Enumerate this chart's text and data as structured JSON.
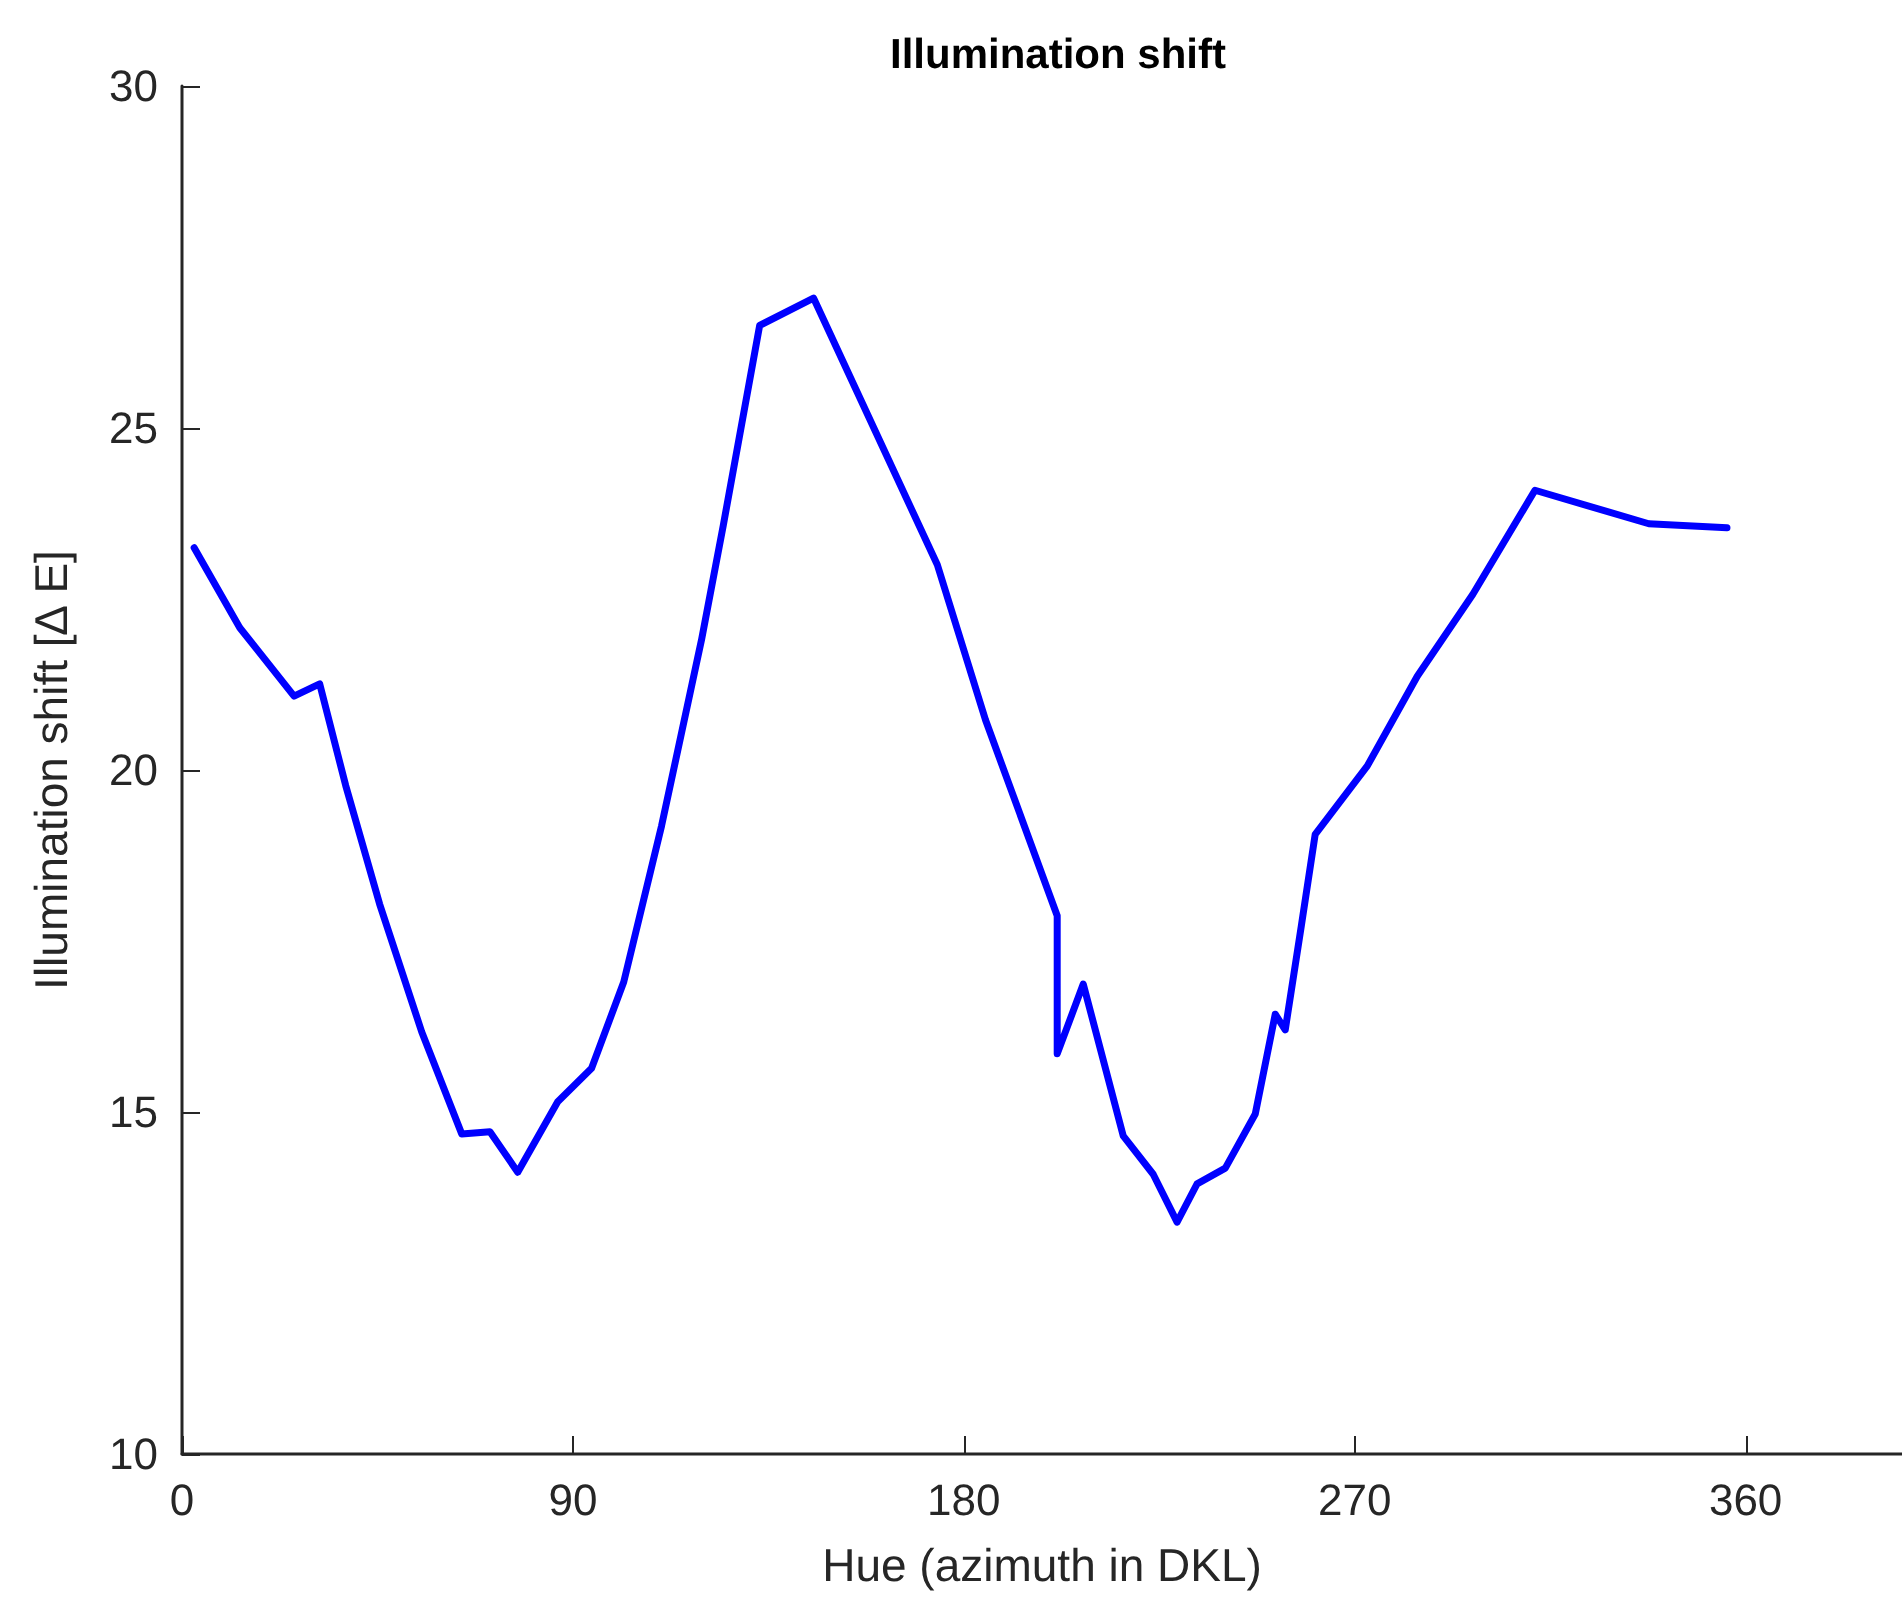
{
  "chart_data": {
    "type": "line",
    "title": "Illumination shift",
    "xlabel": "Hue (azimuth in DKL)",
    "ylabel": "Illumination shift [∆ E]",
    "x": [
      2.8,
      13.3,
      25.8,
      31.7,
      37.7,
      45.5,
      55.2,
      64.4,
      70.9,
      77.3,
      86.5,
      94.3,
      101.7,
      110.4,
      119.6,
      124.6,
      133.0,
      145.4,
      173.9,
      185.0,
      201.5,
      201.5,
      207.5,
      216.7,
      223.6,
      229.1,
      233.7,
      240.2,
      247.1,
      251.7,
      254.0,
      257.7,
      260.9,
      272.9,
      284.4,
      297.2,
      311.5,
      337.7,
      355.7
    ],
    "series": [
      {
        "color": "#0000ff",
        "values": [
          23.25,
          22.08,
          21.08,
          21.26,
          19.77,
          18.04,
          16.17,
          14.68,
          14.71,
          14.12,
          15.15,
          15.64,
          16.9,
          19.18,
          21.9,
          23.57,
          26.5,
          26.9,
          23.0,
          20.73,
          17.87,
          15.85,
          16.87,
          14.65,
          14.09,
          13.39,
          13.95,
          14.18,
          14.97,
          16.43,
          16.2,
          17.72,
          19.06,
          20.06,
          21.37,
          22.57,
          24.09,
          23.6,
          23.54
        ]
      }
    ],
    "xlim": [
      0,
      396
    ],
    "xticks": [
      0,
      90,
      180,
      270,
      360
    ],
    "ylim": [
      10,
      30
    ],
    "yticks": [
      10,
      15,
      20,
      25,
      30
    ],
    "grid": false,
    "marker": "none",
    "line_style": "solid"
  }
}
